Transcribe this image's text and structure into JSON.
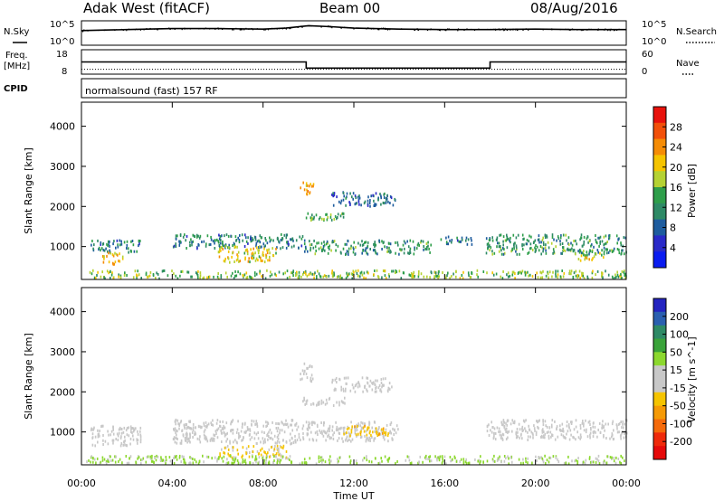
{
  "header": {
    "site": "Adak West (fitACF)",
    "beam": "Beam 00",
    "date": "08/Aug/2016"
  },
  "top_panels": {
    "nsky_label": "N.Sky",
    "nsky_ticks": [
      "10^5",
      "10^0"
    ],
    "nsearch_label": "N.Search",
    "nsearch_ticks": [
      "10^5",
      "10^0"
    ],
    "freq_label": "Freq.",
    "freq_unit": "[MHz]",
    "freq_ticks": [
      "18",
      "8"
    ],
    "nave_label": "Nave",
    "nave_ticks": [
      "60",
      "0"
    ],
    "cpid_label": "CPID",
    "cpid_value": "normalsound (fast) 157 RF"
  },
  "axes": {
    "ylabel": "Slant Range [km]",
    "yticks": [
      "4000",
      "3000",
      "2000",
      "1000"
    ],
    "xticks": [
      "00:00",
      "04:00",
      "08:00",
      "12:00",
      "16:00",
      "20:00",
      "00:00"
    ],
    "xlabel": "Time UT"
  },
  "colorbars": {
    "power": {
      "label": "Power [dB]",
      "ticks": [
        "28",
        "24",
        "20",
        "16",
        "12",
        "8",
        "4"
      ],
      "colors": [
        "#e8120c",
        "#f2500a",
        "#f58c06",
        "#f5c400",
        "#b5d233",
        "#2e9e4a",
        "#2e8a66",
        "#1e5c9e",
        "#2a2ac8",
        "#0a1cf0"
      ]
    },
    "velocity": {
      "label": "Velocity [m s^-1]",
      "ticks": [
        "200",
        "100",
        "50",
        "15",
        "-15",
        "-50",
        "-100",
        "-200"
      ],
      "colors": [
        "#2424c0",
        "#2a5fb0",
        "#2e8a66",
        "#3aa33a",
        "#8cd82e",
        "#c8c8c8",
        "#c8c8c8",
        "#f5c400",
        "#f59a06",
        "#f56a0a",
        "#ef2a0a",
        "#e60a0a"
      ]
    }
  },
  "chart_data": [
    {
      "type": "line",
      "title": "N.Sky / N.Search",
      "x_range_hours": [
        0,
        24
      ],
      "series": [
        {
          "name": "N.Sky",
          "x": [
            0,
            2,
            4,
            6,
            8,
            9,
            10,
            11,
            12,
            14,
            16,
            18,
            20,
            22,
            24
          ],
          "values": [
            3.0,
            3.2,
            3.4,
            3.4,
            3.3,
            3.5,
            4.0,
            3.8,
            3.5,
            3.3,
            3.2,
            3.2,
            3.3,
            3.2,
            3.2
          ]
        },
        {
          "name": "N.Search",
          "x": [
            0,
            12,
            24
          ],
          "values": [
            0,
            0,
            0
          ]
        }
      ]
    },
    {
      "type": "line",
      "title": "Freq. / Nave",
      "x_range_hours": [
        0,
        24
      ],
      "series": [
        {
          "name": "Freq.",
          "x": [
            0,
            9.9,
            9.9,
            18,
            18,
            24
          ],
          "values": [
            13.0,
            13.0,
            10.5,
            10.5,
            13.0,
            13.0
          ]
        },
        {
          "name": "Nave",
          "x": [
            0,
            24
          ],
          "values": [
            12,
            12
          ]
        }
      ]
    },
    {
      "type": "heatmap",
      "title": "Power [dB]",
      "x_range_hours": [
        0,
        24
      ],
      "y_range_km": [
        180,
        4600
      ],
      "clusters": [
        {
          "x0": 0.4,
          "x1": 2.6,
          "y0": 850,
          "y1": 1150,
          "value": 10
        },
        {
          "x0": 0.9,
          "x1": 1.8,
          "y0": 550,
          "y1": 850,
          "value": 22
        },
        {
          "x0": 4.0,
          "x1": 9.8,
          "y0": 950,
          "y1": 1300,
          "value": 10
        },
        {
          "x0": 6.0,
          "x1": 8.6,
          "y0": 600,
          "y1": 1000,
          "value": 20
        },
        {
          "x0": 9.6,
          "x1": 10.2,
          "y0": 2250,
          "y1": 2600,
          "value": 24
        },
        {
          "x0": 9.7,
          "x1": 11.6,
          "y0": 1650,
          "y1": 1850,
          "value": 14
        },
        {
          "x0": 9.8,
          "x1": 15.4,
          "y0": 800,
          "y1": 1150,
          "value": 12
        },
        {
          "x0": 11.0,
          "x1": 13.8,
          "y0": 2000,
          "y1": 2350,
          "value": 8
        },
        {
          "x0": 15.8,
          "x1": 17.2,
          "y0": 1050,
          "y1": 1250,
          "value": 10
        },
        {
          "x0": 17.8,
          "x1": 24.0,
          "y0": 800,
          "y1": 1300,
          "value": 12
        },
        {
          "x0": 21.8,
          "x1": 23.0,
          "y0": 650,
          "y1": 850,
          "value": 20
        },
        {
          "x0": 0.2,
          "x1": 24.0,
          "y0": 200,
          "y1": 400,
          "value": 16
        }
      ]
    },
    {
      "type": "heatmap",
      "title": "Velocity [m s^-1]",
      "x_range_hours": [
        0,
        24
      ],
      "y_range_km": [
        180,
        4600
      ],
      "clusters": [
        {
          "x0": 0.4,
          "x1": 2.6,
          "y0": 650,
          "y1": 1150,
          "value": 0
        },
        {
          "x0": 4.0,
          "x1": 9.8,
          "y0": 700,
          "y1": 1300,
          "value": 0
        },
        {
          "x0": 6.0,
          "x1": 9.0,
          "y0": 350,
          "y1": 650,
          "value": -50
        },
        {
          "x0": 9.6,
          "x1": 10.2,
          "y0": 2250,
          "y1": 2700,
          "value": 0
        },
        {
          "x0": 9.7,
          "x1": 11.6,
          "y0": 1650,
          "y1": 1850,
          "value": 0
        },
        {
          "x0": 9.8,
          "x1": 14.0,
          "y0": 750,
          "y1": 1250,
          "value": 0
        },
        {
          "x0": 11.5,
          "x1": 13.5,
          "y0": 900,
          "y1": 1150,
          "value": -80
        },
        {
          "x0": 11.0,
          "x1": 13.8,
          "y0": 2000,
          "y1": 2350,
          "value": 0
        },
        {
          "x0": 17.8,
          "x1": 24.0,
          "y0": 800,
          "y1": 1300,
          "value": 0
        },
        {
          "x0": 0.2,
          "x1": 24.0,
          "y0": 200,
          "y1": 400,
          "value": 50
        }
      ]
    }
  ]
}
